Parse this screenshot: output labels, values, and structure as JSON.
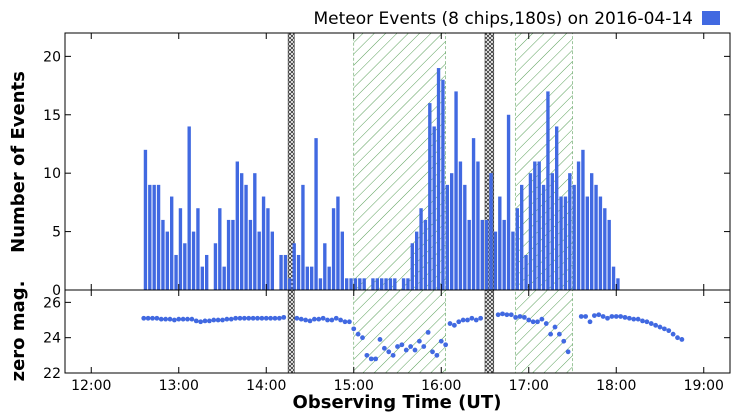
{
  "chart_data": {
    "type": "bar",
    "title": "Meteor Events (8 chips,180s) on 2016-04-14",
    "legend": {
      "label": "Meteor Events (8 chips,180s) on 2016-04-14",
      "color": "#4169E1",
      "placement": "top-right"
    },
    "xlabel": "Observing Time (UT)",
    "x_range_hours": [
      11.7,
      19.3
    ],
    "x_ticks": [
      {
        "value": 12,
        "label": "12:00"
      },
      {
        "value": 13,
        "label": "13:00"
      },
      {
        "value": 14,
        "label": "14:00"
      },
      {
        "value": 15,
        "label": "15:00"
      },
      {
        "value": 16,
        "label": "16:00"
      },
      {
        "value": 17,
        "label": "17:00"
      },
      {
        "value": 18,
        "label": "18:00"
      },
      {
        "value": 19,
        "label": "19:00"
      }
    ],
    "bin_width_hours": 0.05,
    "top_panel": {
      "ylabel": "Number of Events",
      "ylim": [
        0,
        22
      ],
      "y_ticks": [
        0,
        5,
        10,
        15,
        20
      ],
      "series": [
        {
          "name": "Meteor Events",
          "color": "#4169E1",
          "start_hour": 12.6,
          "values": [
            12,
            9,
            9,
            9,
            6,
            5,
            8,
            3,
            7,
            4,
            14,
            5,
            7,
            2,
            3,
            0,
            4,
            7,
            2,
            6,
            6,
            11,
            10,
            9,
            6,
            10,
            5,
            8,
            7,
            5,
            0,
            3,
            3,
            1,
            4,
            3,
            9,
            2,
            2,
            13,
            1,
            4,
            2,
            7,
            8,
            5,
            1,
            1,
            1,
            1,
            1,
            0,
            1,
            1,
            1,
            1,
            1,
            1,
            0,
            1,
            1,
            4,
            5,
            7,
            6,
            16,
            14,
            19,
            18,
            9,
            10,
            17,
            11,
            9,
            6,
            13,
            11,
            6,
            6,
            10,
            5,
            8,
            6,
            15,
            5,
            7,
            9,
            3,
            10,
            11,
            11,
            9,
            17,
            10,
            14,
            8,
            8,
            10,
            9,
            11,
            12,
            8,
            10,
            9,
            8,
            7,
            6,
            2,
            1
          ]
        }
      ],
      "hatched_regions": [
        {
          "kind": "cloud",
          "start": 15.0,
          "end": 16.05
        },
        {
          "kind": "cloud",
          "start": 16.85,
          "end": 17.5
        }
      ],
      "gap_regions": [
        {
          "start": 14.25,
          "end": 14.32
        },
        {
          "start": 16.5,
          "end": 16.6
        }
      ]
    },
    "bottom_panel": {
      "ylabel": "zero mag.",
      "ylim": [
        22,
        26.7
      ],
      "y_ticks": [
        22,
        24,
        26
      ],
      "series": [
        {
          "name": "zero magnitude",
          "type": "scatter",
          "color": "#4169E1",
          "x": [
            12.6,
            12.65,
            12.7,
            12.75,
            12.8,
            12.85,
            12.9,
            12.95,
            13.0,
            13.05,
            13.1,
            13.15,
            13.2,
            13.25,
            13.3,
            13.35,
            13.4,
            13.45,
            13.5,
            13.55,
            13.6,
            13.65,
            13.7,
            13.75,
            13.8,
            13.85,
            13.9,
            13.95,
            14.0,
            14.05,
            14.1,
            14.15,
            14.2,
            14.35,
            14.4,
            14.45,
            14.5,
            14.55,
            14.6,
            14.65,
            14.7,
            14.75,
            14.8,
            14.85,
            14.9,
            14.95,
            15.0,
            15.05,
            15.1,
            15.15,
            15.2,
            15.25,
            15.3,
            15.35,
            15.4,
            15.45,
            15.5,
            15.55,
            15.6,
            15.65,
            15.7,
            15.75,
            15.8,
            15.85,
            15.9,
            15.95,
            16.0,
            16.05,
            16.1,
            16.15,
            16.2,
            16.25,
            16.3,
            16.35,
            16.4,
            16.45,
            16.65,
            16.7,
            16.75,
            16.8,
            16.85,
            16.9,
            16.95,
            17.0,
            17.05,
            17.1,
            17.15,
            17.2,
            17.25,
            17.3,
            17.35,
            17.4,
            17.45,
            17.6,
            17.65,
            17.7,
            17.75,
            17.8,
            17.85,
            17.9,
            17.95,
            18.0,
            18.05,
            18.1,
            18.15,
            18.2,
            18.25,
            18.3,
            18.35,
            18.4,
            18.45,
            18.5,
            18.55,
            18.6,
            18.65,
            18.7,
            18.75
          ],
          "y": [
            25.1,
            25.1,
            25.1,
            25.1,
            25.05,
            25.05,
            25.05,
            25.0,
            25.05,
            25.05,
            25.05,
            25.05,
            24.95,
            24.9,
            24.95,
            24.95,
            25.0,
            25.0,
            25.0,
            25.05,
            25.05,
            25.1,
            25.1,
            25.1,
            25.1,
            25.1,
            25.1,
            25.1,
            25.1,
            25.1,
            25.1,
            25.1,
            25.15,
            25.1,
            25.05,
            25.0,
            24.95,
            25.05,
            25.05,
            25.1,
            25.0,
            25.0,
            25.1,
            25.0,
            24.9,
            24.9,
            24.5,
            24.2,
            24.0,
            23.0,
            22.8,
            22.8,
            23.9,
            23.4,
            23.2,
            23.0,
            23.5,
            23.6,
            23.3,
            23.5,
            23.3,
            23.8,
            23.5,
            24.3,
            23.2,
            23.0,
            23.8,
            23.6,
            24.8,
            24.7,
            24.9,
            25.0,
            25.0,
            25.1,
            25.0,
            25.1,
            25.3,
            25.35,
            25.3,
            25.3,
            25.15,
            25.2,
            25.15,
            25.0,
            24.9,
            24.9,
            25.05,
            24.8,
            24.2,
            24.6,
            24.2,
            23.8,
            23.2,
            25.2,
            25.2,
            24.9,
            25.25,
            25.3,
            25.2,
            25.1,
            25.2,
            25.2,
            25.2,
            25.15,
            25.1,
            25.05,
            25.05,
            24.95,
            24.9,
            24.8,
            24.7,
            24.6,
            24.5,
            24.4,
            24.2,
            24.0,
            23.9
          ]
        }
      ]
    }
  }
}
